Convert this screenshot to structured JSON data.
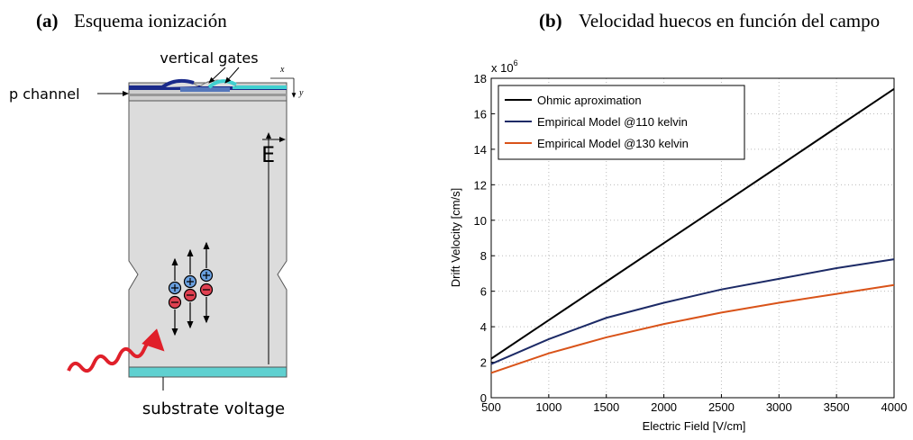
{
  "panel_a": {
    "label": "(a)",
    "title": "Esquema ionización",
    "gates": "vertical gates",
    "channel": "p channel",
    "axis_x": "x",
    "axis_y": "y",
    "field": "E",
    "substrate": "substrate voltage"
  },
  "chart_data": {
    "type": "line",
    "label": "(b)",
    "title": "Velocidad huecos en función del campo",
    "x_label": "Electric Field [V/cm]",
    "y_label": "Drift Velocity [cm/s]",
    "y_scale_label": "x 10",
    "y_scale_exponent": "6",
    "x": [
      500,
      1000,
      1500,
      2000,
      2500,
      3000,
      3500,
      4000
    ],
    "series": [
      {
        "name": "Ohmic aproximation",
        "color": "#000000",
        "values": [
          2.2,
          4.37,
          6.54,
          8.71,
          10.88,
          13.05,
          15.23,
          17.4
        ]
      },
      {
        "name": "Empirical Model @110 kelvin",
        "color": "#1c2a66",
        "values": [
          1.9,
          3.3,
          4.5,
          5.35,
          6.1,
          6.7,
          7.3,
          7.8
        ]
      },
      {
        "name": "Empirical Model @130 kelvin",
        "color": "#d95319",
        "values": [
          1.4,
          2.5,
          3.4,
          4.15,
          4.8,
          5.35,
          5.85,
          6.35
        ]
      }
    ],
    "xlim": [
      500,
      4000
    ],
    "xticks": [
      500,
      1000,
      1500,
      2000,
      2500,
      3000,
      3500,
      4000
    ],
    "ylim": [
      0,
      18
    ],
    "yticks": [
      0,
      2,
      4,
      6,
      8,
      10,
      12,
      14,
      16,
      18
    ],
    "grid": true,
    "legend": "upper left"
  }
}
